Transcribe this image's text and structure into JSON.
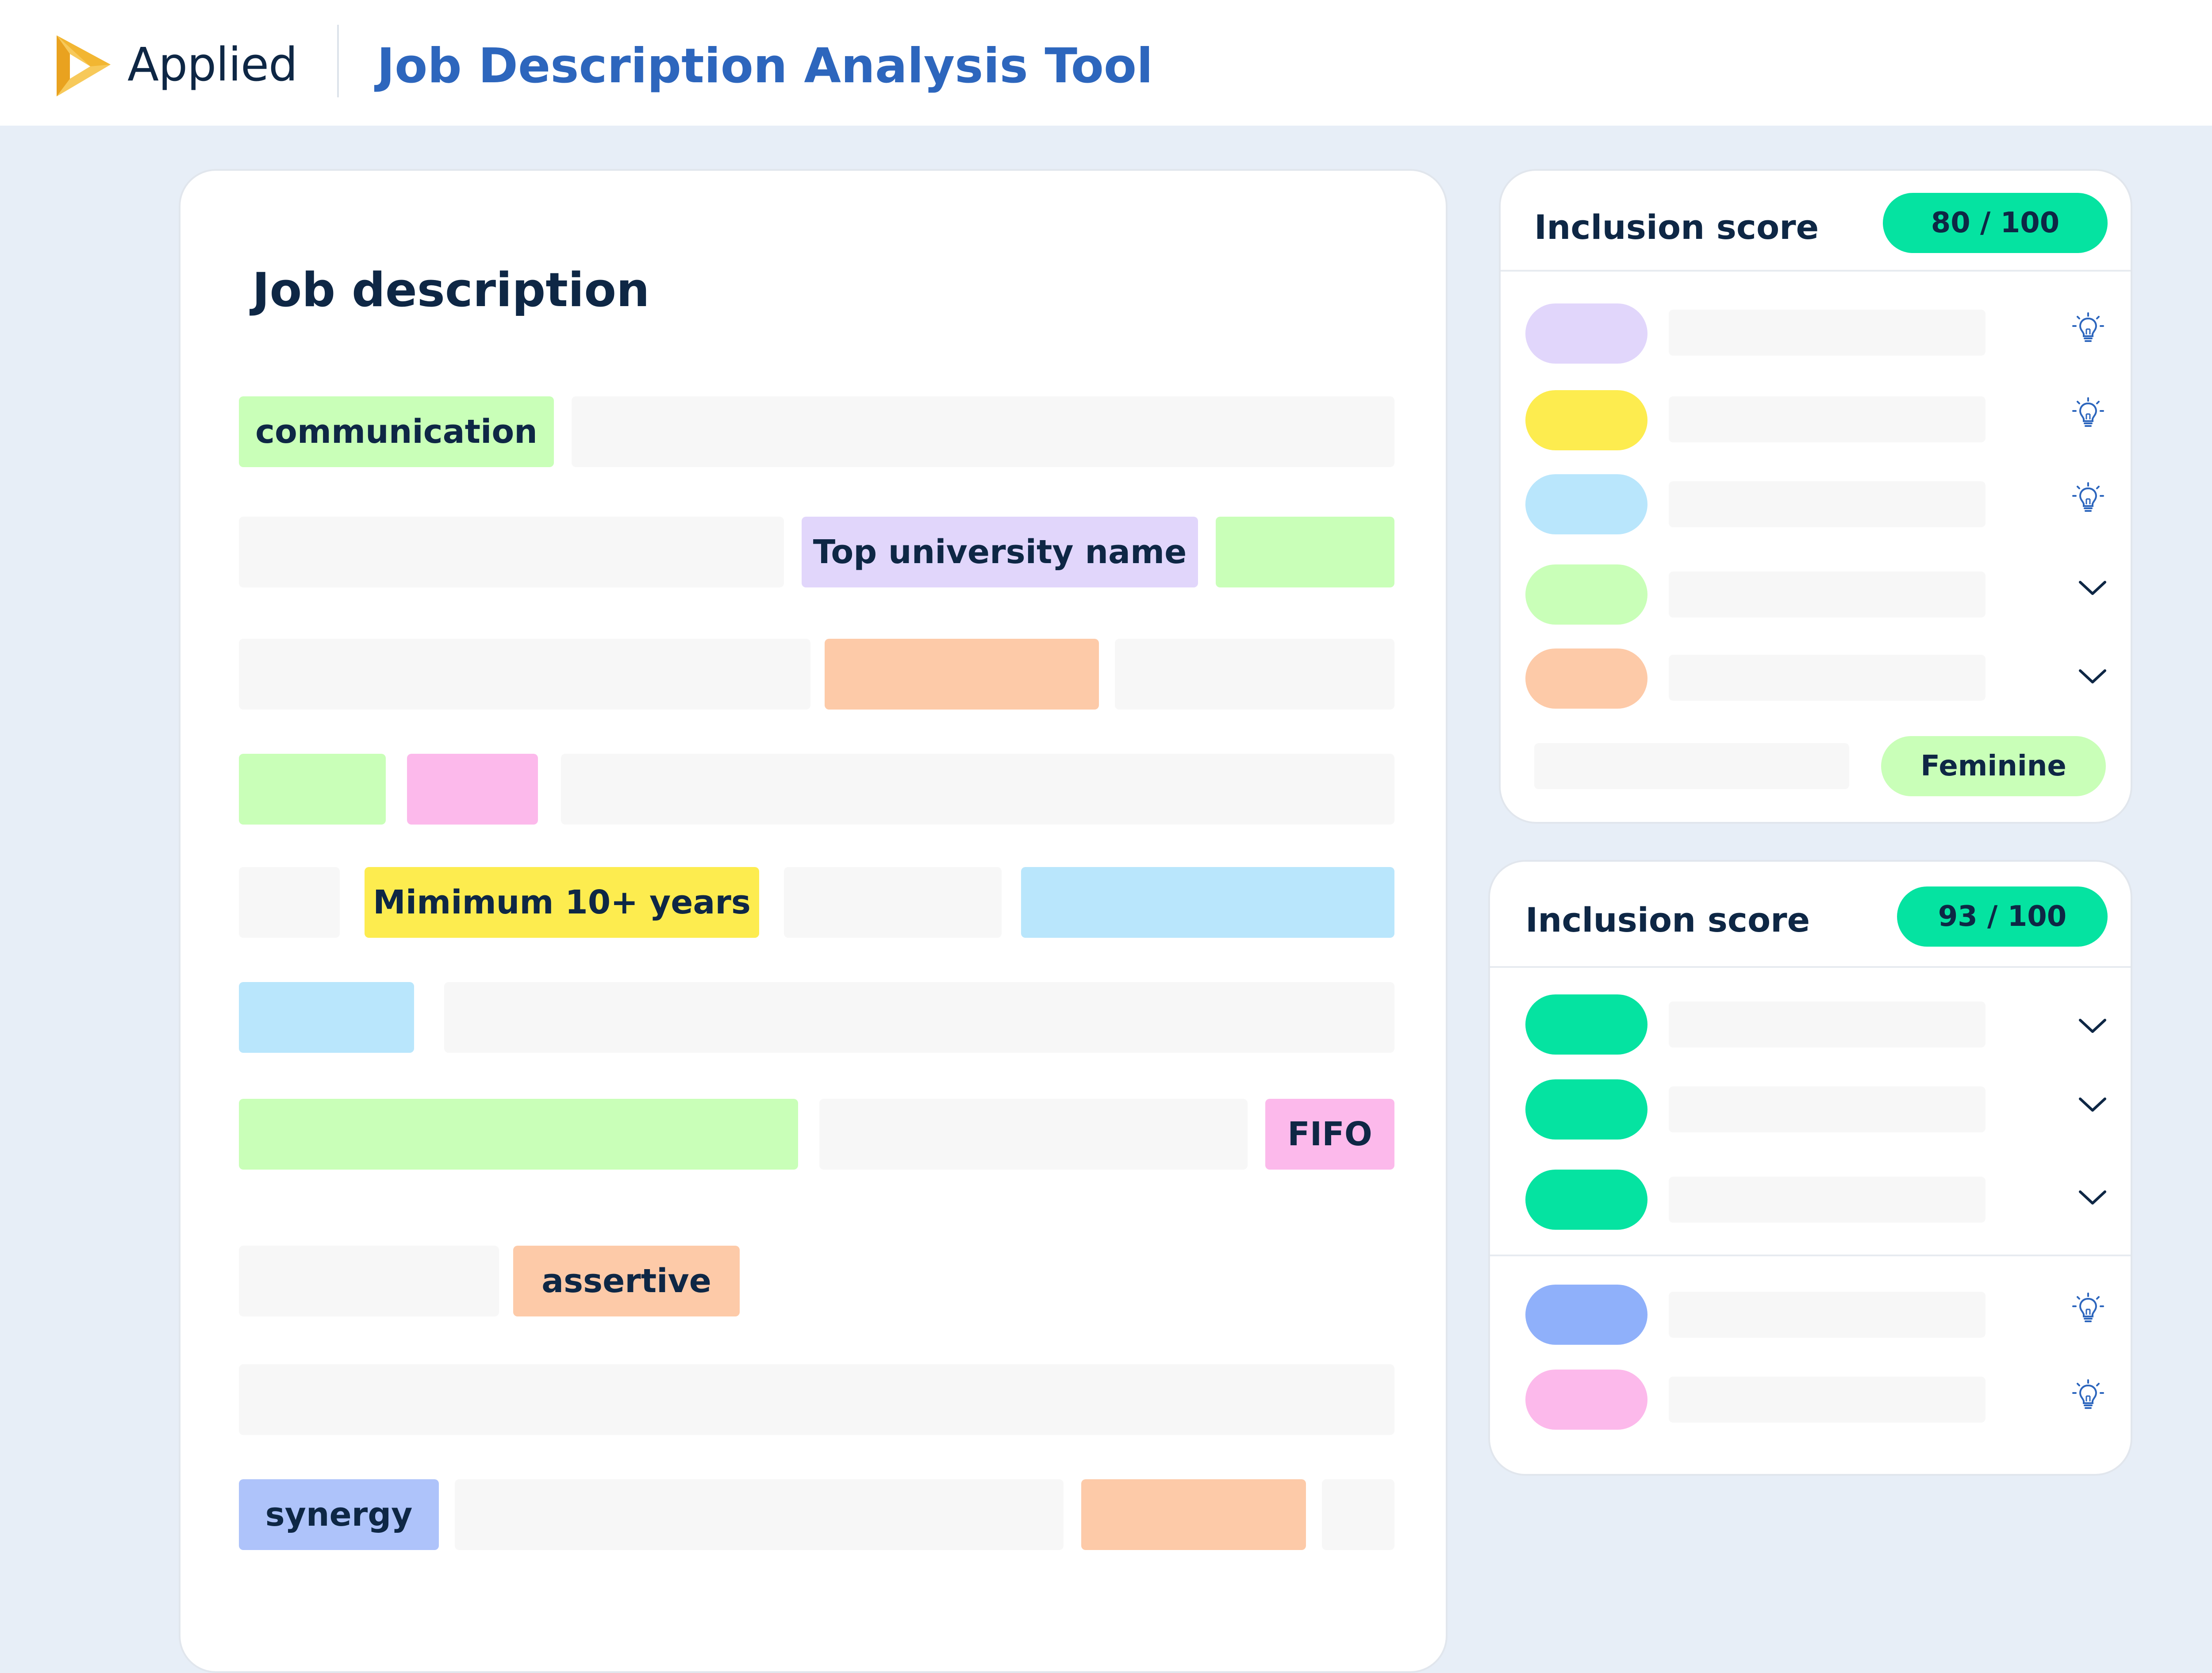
{
  "header": {
    "brand": "Applied",
    "title": "Job Description Analysis Tool",
    "logo_icon": "applied-play-logo-icon",
    "colors": {
      "brand_text": "#0e2745",
      "title_text": "#2d66bd",
      "logo_gold": "#f2b632"
    }
  },
  "document": {
    "title": "Job description",
    "highlights": {
      "communication": "communication",
      "top_university": "Top university name",
      "min_years": "Mimimum 10+ years",
      "fifo": "FIFO",
      "assertive": "assertive",
      "synergy": "synergy"
    },
    "colors": {
      "placeholder": "#f7f7f7",
      "green": "#c9ffb8",
      "purple": "#e1d6fb",
      "orange": "#fdcaa8",
      "pink": "#fcb9eb",
      "yellow": "#fdec4f",
      "blue": "#b9e6fc",
      "indigo": "#aec3fa"
    }
  },
  "score_card_1": {
    "heading": "Inclusion score",
    "score": "80 / 100",
    "rows": [
      {
        "color": "#e1d6fb",
        "icon": "lightbulb-icon"
      },
      {
        "color": "#fdec4f",
        "icon": "lightbulb-icon"
      },
      {
        "color": "#b9e6fc",
        "icon": "lightbulb-icon"
      },
      {
        "color": "#c9ffb8",
        "icon": "chevron-down-icon"
      },
      {
        "color": "#fdcaa8",
        "icon": "chevron-down-icon"
      }
    ],
    "tone_label": "Feminine"
  },
  "score_card_2": {
    "heading": "Inclusion score",
    "score": "93 / 100",
    "rows": [
      {
        "color": "#05e3a1",
        "icon": "chevron-down-icon"
      },
      {
        "color": "#05e3a1",
        "icon": "chevron-down-icon"
      },
      {
        "color": "#05e3a1",
        "icon": "chevron-down-icon"
      },
      {
        "color": "#8fb0fa",
        "icon": "lightbulb-icon"
      },
      {
        "color": "#fcb9eb",
        "icon": "lightbulb-icon"
      }
    ]
  },
  "accent_score_color": "#05e3a1"
}
